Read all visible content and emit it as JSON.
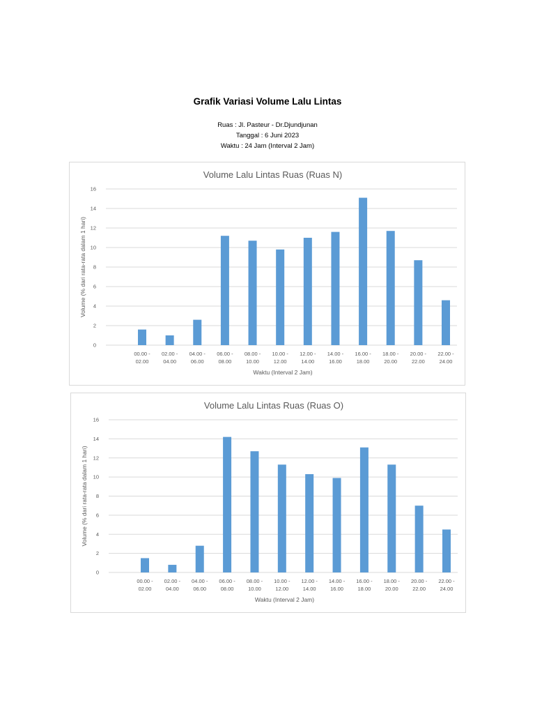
{
  "header": {
    "title": "Grafik Variasi Volume Lalu Lintas",
    "ruas": "Ruas : Jl. Pasteur - Dr.Djundjunan",
    "tanggal": "Tanggal : 6 Juni 2023",
    "waktu": "Waktu : 24 Jam (Interval 2 Jam)"
  },
  "colors": {
    "bar": "#5b9bd5",
    "grid": "#d9d9d9",
    "text": "#595959"
  },
  "chart_data": [
    {
      "type": "bar",
      "title": "Volume Lalu Lintas Ruas (Ruas N)",
      "xlabel": "Waktu (Interval 2 Jam)",
      "ylabel": "Volume (% dari rata-rata dalam 1 hari)",
      "ylim": [
        0,
        16
      ],
      "yticks": [
        0,
        2,
        4,
        6,
        8,
        10,
        12,
        14,
        16
      ],
      "grid": true,
      "categories": [
        [
          "00.00 -",
          "02.00"
        ],
        [
          "02.00 -",
          "04.00"
        ],
        [
          "04.00 -",
          "06.00"
        ],
        [
          "06.00 -",
          "08.00"
        ],
        [
          "08.00 -",
          "10.00"
        ],
        [
          "10.00 -",
          "12.00"
        ],
        [
          "12.00 -",
          "14.00"
        ],
        [
          "14.00 -",
          "16.00"
        ],
        [
          "16.00 -",
          "18.00"
        ],
        [
          "18.00 -",
          "20.00"
        ],
        [
          "20.00 -",
          "22.00"
        ],
        [
          "22.00 -",
          "24.00"
        ]
      ],
      "values": [
        1.6,
        1.0,
        2.6,
        11.2,
        10.7,
        9.8,
        11.0,
        11.6,
        15.1,
        11.7,
        8.7,
        4.6
      ]
    },
    {
      "type": "bar",
      "title": "Volume Lalu Lintas Ruas (Ruas O)",
      "xlabel": "Waktu (Interval 2 Jam)",
      "ylabel": "Volume (% dari rata-rata dalam 1 hari)",
      "ylim": [
        0,
        16
      ],
      "yticks": [
        0,
        2,
        4,
        6,
        8,
        10,
        12,
        14,
        16
      ],
      "grid": true,
      "categories": [
        [
          "00.00 -",
          "02.00"
        ],
        [
          "02.00 -",
          "04.00"
        ],
        [
          "04.00 -",
          "06.00"
        ],
        [
          "06.00 -",
          "08.00"
        ],
        [
          "08.00 -",
          "10.00"
        ],
        [
          "10.00 -",
          "12.00"
        ],
        [
          "12.00 -",
          "14.00"
        ],
        [
          "14.00 -",
          "16.00"
        ],
        [
          "16.00 -",
          "18.00"
        ],
        [
          "18.00 -",
          "20.00"
        ],
        [
          "20.00 -",
          "22.00"
        ],
        [
          "22.00 -",
          "24.00"
        ]
      ],
      "values": [
        1.5,
        0.8,
        2.8,
        14.2,
        12.7,
        11.3,
        10.3,
        9.9,
        13.1,
        11.3,
        7.0,
        4.5
      ]
    }
  ]
}
